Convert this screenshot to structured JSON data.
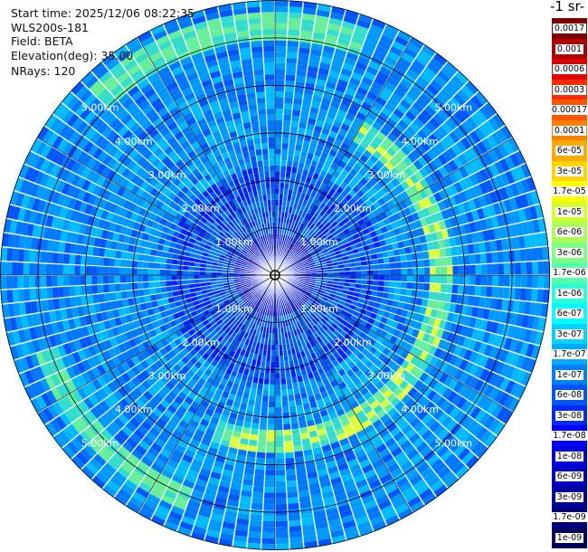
{
  "info": {
    "start_time": "Start time: 2025/12/06 08:22:35",
    "instrument": "WLS200s-181",
    "field": "Field: BETA",
    "elevation": "Elevation(deg): 35.00",
    "nrays": "NRays: 120"
  },
  "colorbar": {
    "title": "-1 sr-",
    "labels": [
      "0.0017",
      "0.001",
      "0.0006",
      "0.0003",
      "0.00017",
      "0.0001",
      "6e-05",
      "3e-05",
      "1.7e-05",
      "1e-05",
      "6e-06",
      "3e-06",
      "1.7e-06",
      "1e-06",
      "6e-07",
      "3e-07",
      "1.7e-07",
      "1e-07",
      "6e-08",
      "3e-08",
      "1.7e-08",
      "1e-08",
      "6e-09",
      "3e-09",
      "1.7e-09",
      "1e-09"
    ],
    "colors": [
      "#7f0000",
      "#b00000",
      "#e00000",
      "#ff2a00",
      "#ff5500",
      "#ff7f00",
      "#ffaa00",
      "#ffd400",
      "#ffff00",
      "#d4ff2a",
      "#aaff55",
      "#7fff7f",
      "#55ffaa",
      "#2affd4",
      "#00ffff",
      "#00d4ff",
      "#00aaff",
      "#007fff",
      "#0055ff",
      "#002aff",
      "#0000ff",
      "#0000e0",
      "#0000c0",
      "#00009f",
      "#00007f",
      "#000060"
    ]
  },
  "chart_data": {
    "type": "heatmap",
    "projection": "polar (PPI)",
    "n_rays": 120,
    "range_rings_km": [
      1,
      2,
      3,
      4,
      5
    ],
    "range_ring_labels": [
      "1.00km",
      "2.00km",
      "3.00km",
      "4.00km",
      "5.00km"
    ],
    "max_range_km": 5.8,
    "features": [
      {
        "type": "enhanced-backscatter-ring",
        "radius_km": 3.5,
        "azimuth_deg": [
          30,
          200
        ],
        "level": "1e-05"
      },
      {
        "type": "enhanced-backscatter-arc",
        "radius_km": 5.0,
        "azimuth_deg": [
          200,
          250
        ],
        "level": "1.7e-06"
      },
      {
        "type": "enhanced-backscatter-arc",
        "radius_km": 5.2,
        "azimuth_deg": [
          315,
          20
        ],
        "level": "1.7e-06"
      }
    ],
    "background_level": "3e-08",
    "near_range_level": "1e-08"
  }
}
